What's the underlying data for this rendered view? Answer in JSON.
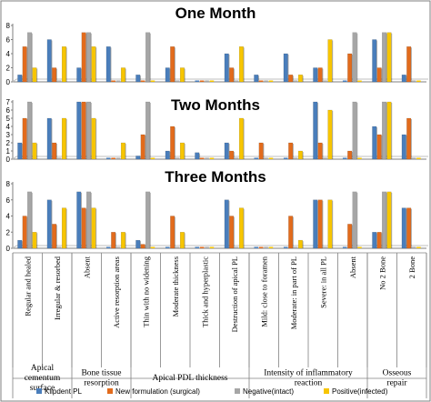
{
  "chart_data": {
    "type": "bar",
    "categories": [
      "Regular and healed",
      "Irregular & resorbed",
      "Absent",
      "Active resorption areas",
      "Thin with no widening",
      "Moderate thickness",
      "Thick and hyperplastic",
      "Destruction of apical PL",
      "Mild: close to foramen",
      "Moderate:  in part of PL",
      "Severe: in all PL",
      "Absent",
      "No 2 Bone",
      "2 Bone"
    ],
    "category_groups": [
      {
        "label_lines": [
          "Apical",
          "cementum",
          "surface"
        ]
      },
      {
        "label_lines": [
          "Bone tissue",
          "resorption"
        ]
      },
      {
        "label_lines": [
          "Apical PDL thickness"
        ]
      },
      {
        "label_lines": [
          "Intensity of inflammatory",
          "reaction"
        ]
      },
      {
        "label_lines": [
          "Osseous",
          "repair"
        ]
      }
    ],
    "series_names": [
      "Klipdent PL",
      "New formulation (surgical)",
      "Negative(intact)",
      "Positive(infected)"
    ],
    "series_colors": [
      "#4a7ebb",
      "#e26b1c",
      "#a6a6a6",
      "#f7c500"
    ],
    "panels": [
      {
        "title": "One Month",
        "ylim": [
          0,
          8
        ],
        "yticks": [
          "0",
          "2",
          "4",
          "6",
          "8"
        ],
        "series": [
          {
            "name": "Klipdent PL",
            "values": [
              1,
              6,
              2,
              5,
              1,
              2,
              0,
              4,
              1,
              4,
              2,
              0,
              6,
              1
            ]
          },
          {
            "name": "New formulation (surgical)",
            "values": [
              5,
              2,
              7,
              0,
              0,
              5,
              0,
              2,
              0,
              1,
              2,
              4,
              2,
              5
            ]
          },
          {
            "name": "Negative(intact)",
            "values": [
              7,
              0,
              7,
              0,
              7,
              0,
              0,
              0,
              0,
              0,
              0,
              7,
              7,
              0
            ]
          },
          {
            "name": "Positive(infected)",
            "values": [
              2,
              5,
              5,
              2,
              0,
              2,
              0,
              5,
              0,
              1,
              6,
              0,
              7,
              0
            ]
          }
        ]
      },
      {
        "title": "Two Months",
        "ylim": [
          0,
          7
        ],
        "yticks": [
          "0",
          "1",
          "2",
          "3",
          "4",
          "5",
          "6",
          "7"
        ],
        "series": [
          {
            "name": "Klipdent PL",
            "values": [
              2,
              5,
              7,
              0,
              0.4,
              1,
              0.8,
              2,
              0,
              0,
              7,
              0,
              4,
              3
            ]
          },
          {
            "name": "New formulation (surgical)",
            "values": [
              5,
              2,
              7,
              0,
              3,
              4,
              0,
              1,
              2,
              2,
              2,
              1,
              3,
              5
            ]
          },
          {
            "name": "Negative(intact)",
            "values": [
              7,
              0,
              7,
              0,
              7,
              0,
              0,
              0,
              0,
              0,
              0,
              7,
              7,
              0
            ]
          },
          {
            "name": "Positive(infected)",
            "values": [
              2,
              5,
              5,
              2,
              0,
              2,
              0,
              5,
              0,
              1,
              6,
              0,
              7,
              0
            ]
          }
        ]
      },
      {
        "title": "Three Months",
        "ylim": [
          0,
          8
        ],
        "yticks": [
          "0",
          "2",
          "4",
          "6",
          "8"
        ],
        "series": [
          {
            "name": "Klipdent PL",
            "values": [
              1,
              6,
              7,
              0,
              1,
              0,
              0,
              6,
              0,
              0,
              6,
              0,
              2,
              5
            ]
          },
          {
            "name": "New formulation (surgical)",
            "values": [
              4,
              3,
              5,
              2,
              0.5,
              4,
              0,
              4,
              0,
              4,
              6,
              3,
              2,
              5
            ]
          },
          {
            "name": "Negative(intact)",
            "values": [
              7,
              0,
              7,
              0,
              7,
              0,
              0,
              0,
              0,
              0,
              0,
              7,
              7,
              0
            ]
          },
          {
            "name": "Positive(infected)",
            "values": [
              2,
              5,
              5,
              2,
              0,
              2,
              0,
              5,
              0,
              1,
              6,
              0,
              7,
              0
            ]
          }
        ]
      }
    ],
    "grid": false,
    "legend": "bottom"
  }
}
